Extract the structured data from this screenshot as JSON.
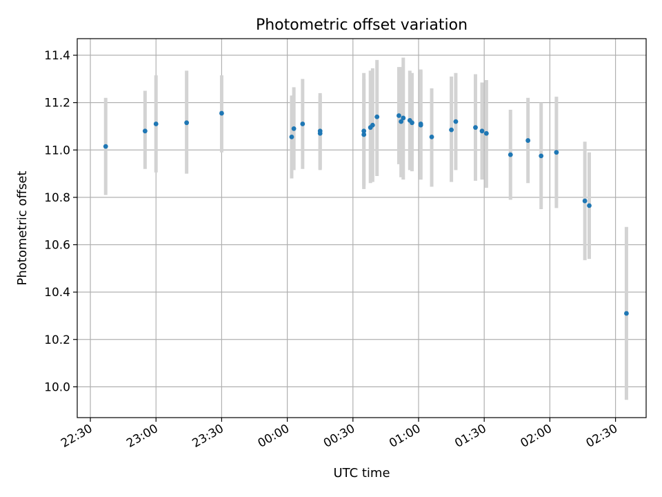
{
  "chart_data": {
    "type": "scatter",
    "title": "Photometric offset variation",
    "xlabel": "UTC time",
    "ylabel": "Photometric offset",
    "xlim_minutes": [
      -96,
      164
    ],
    "ylim": [
      9.87,
      11.47
    ],
    "grid": true,
    "x_ticks": [
      {
        "label": "22:30",
        "minutes": -90
      },
      {
        "label": "23:00",
        "minutes": -60
      },
      {
        "label": "23:30",
        "minutes": -30
      },
      {
        "label": "00:00",
        "minutes": 0
      },
      {
        "label": "00:30",
        "minutes": 30
      },
      {
        "label": "01:00",
        "minutes": 60
      },
      {
        "label": "01:30",
        "minutes": 90
      },
      {
        "label": "02:00",
        "minutes": 120
      },
      {
        "label": "02:30",
        "minutes": 150
      }
    ],
    "y_ticks": [
      10.0,
      10.2,
      10.4,
      10.6,
      10.8,
      11.0,
      11.2,
      11.4
    ],
    "y_tick_labels": [
      "10.0",
      "10.2",
      "10.4",
      "10.6",
      "10.8",
      "11.0",
      "11.2",
      "11.4"
    ],
    "colors": {
      "marker": "#1f77b4",
      "errorbar": "#d3d3d3",
      "grid": "#b0b0b0"
    },
    "points": [
      {
        "t": "22:37",
        "y": 11.015,
        "ylo": 10.81,
        "yhi": 11.22
      },
      {
        "t": "22:55",
        "y": 11.08,
        "ylo": 10.92,
        "yhi": 11.25
      },
      {
        "t": "23:00",
        "y": 11.11,
        "ylo": 10.905,
        "yhi": 11.315
      },
      {
        "t": "23:14",
        "y": 11.115,
        "ylo": 10.9,
        "yhi": 11.335
      },
      {
        "t": "23:30",
        "y": 11.155,
        "ylo": 10.99,
        "yhi": 11.315
      },
      {
        "t": "00:02",
        "y": 11.055,
        "ylo": 10.88,
        "yhi": 11.23
      },
      {
        "t": "00:03",
        "y": 11.09,
        "ylo": 10.915,
        "yhi": 11.265
      },
      {
        "t": "00:07",
        "y": 11.11,
        "ylo": 10.92,
        "yhi": 11.3
      },
      {
        "t": "00:15",
        "y": 11.07,
        "ylo": 10.915,
        "yhi": 11.23
      },
      {
        "t": "00:15",
        "y": 11.08,
        "ylo": 10.92,
        "yhi": 11.24
      },
      {
        "t": "00:35",
        "y": 11.065,
        "ylo": 10.835,
        "yhi": 11.325
      },
      {
        "t": "00:35",
        "y": 11.08,
        "ylo": 10.85,
        "yhi": 11.3
      },
      {
        "t": "00:38",
        "y": 11.095,
        "ylo": 10.86,
        "yhi": 11.335
      },
      {
        "t": "00:39",
        "y": 11.105,
        "ylo": 10.865,
        "yhi": 11.345
      },
      {
        "t": "00:41",
        "y": 11.14,
        "ylo": 10.89,
        "yhi": 11.38
      },
      {
        "t": "00:51",
        "y": 11.145,
        "ylo": 10.94,
        "yhi": 11.35
      },
      {
        "t": "00:52",
        "y": 11.12,
        "ylo": 10.885,
        "yhi": 11.35
      },
      {
        "t": "00:53",
        "y": 11.135,
        "ylo": 10.875,
        "yhi": 11.39
      },
      {
        "t": "00:56",
        "y": 11.125,
        "ylo": 10.915,
        "yhi": 11.335
      },
      {
        "t": "00:57",
        "y": 11.115,
        "ylo": 10.91,
        "yhi": 11.325
      },
      {
        "t": "01:01",
        "y": 11.11,
        "ylo": 10.875,
        "yhi": 11.34
      },
      {
        "t": "01:01",
        "y": 11.105,
        "ylo": 10.875,
        "yhi": 11.335
      },
      {
        "t": "01:06",
        "y": 11.055,
        "ylo": 10.845,
        "yhi": 11.26
      },
      {
        "t": "01:15",
        "y": 11.085,
        "ylo": 10.865,
        "yhi": 11.31
      },
      {
        "t": "01:17",
        "y": 11.12,
        "ylo": 10.915,
        "yhi": 11.325
      },
      {
        "t": "01:26",
        "y": 11.095,
        "ylo": 10.87,
        "yhi": 11.32
      },
      {
        "t": "01:29",
        "y": 11.08,
        "ylo": 10.875,
        "yhi": 11.285
      },
      {
        "t": "01:31",
        "y": 11.07,
        "ylo": 10.84,
        "yhi": 11.295
      },
      {
        "t": "01:42",
        "y": 10.98,
        "ylo": 10.79,
        "yhi": 11.17
      },
      {
        "t": "01:50",
        "y": 11.04,
        "ylo": 10.86,
        "yhi": 11.22
      },
      {
        "t": "01:56",
        "y": 10.975,
        "ylo": 10.75,
        "yhi": 11.2
      },
      {
        "t": "02:03",
        "y": 10.99,
        "ylo": 10.755,
        "yhi": 11.225
      },
      {
        "t": "02:16",
        "y": 10.785,
        "ylo": 10.535,
        "yhi": 11.035
      },
      {
        "t": "02:18",
        "y": 10.765,
        "ylo": 10.54,
        "yhi": 10.99
      },
      {
        "t": "02:35",
        "y": 10.31,
        "ylo": 9.945,
        "yhi": 10.675
      }
    ]
  }
}
